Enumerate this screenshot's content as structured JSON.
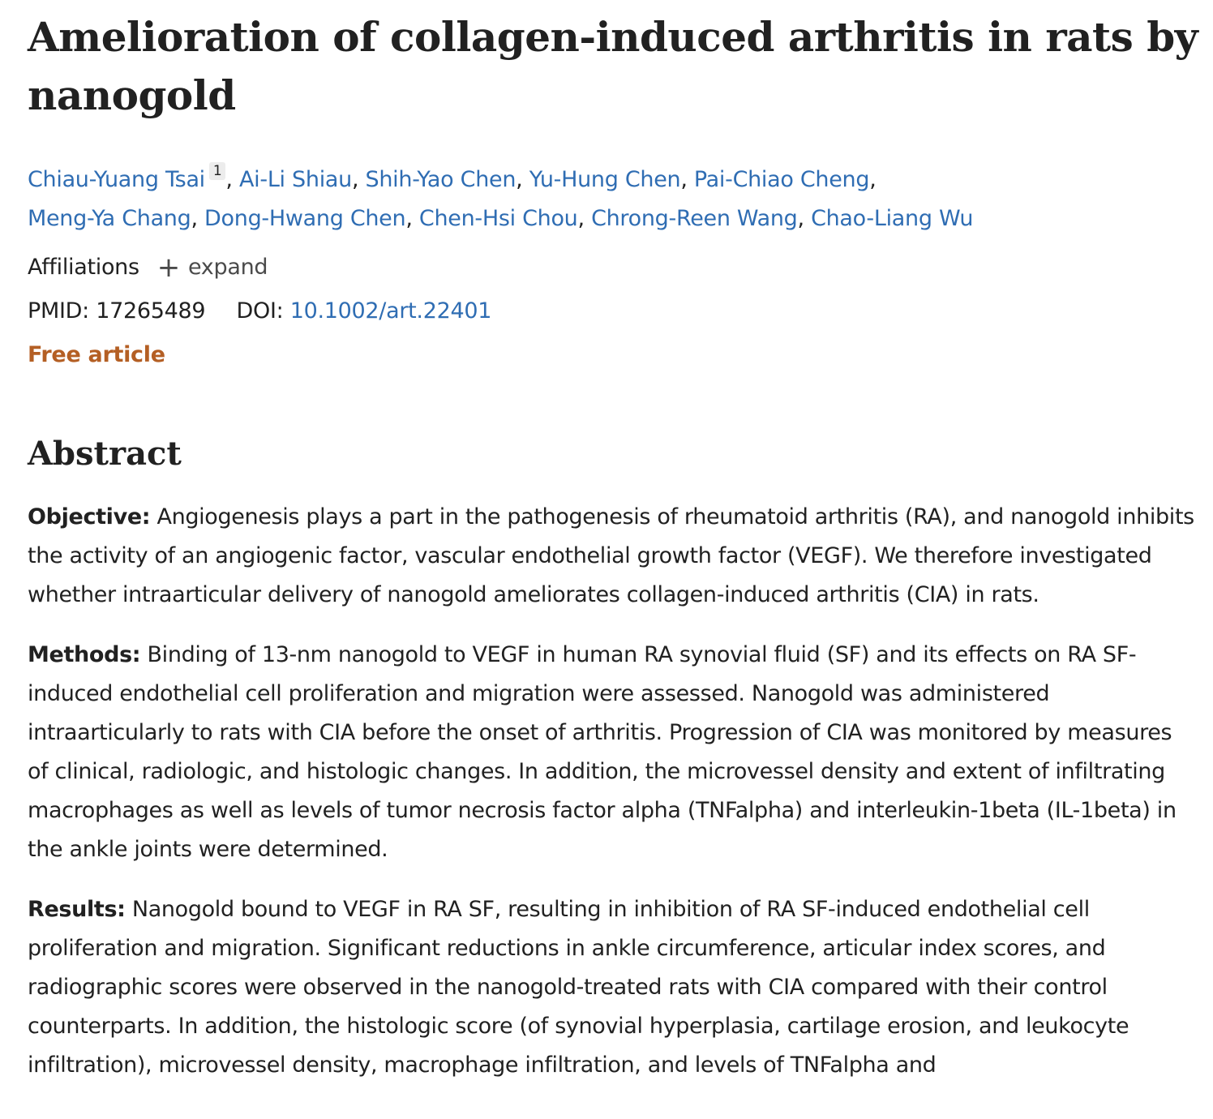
{
  "article": {
    "title": "Amelioration of collagen-induced arthritis in rats by nanogold",
    "authors": [
      {
        "name": "Chiau-Yuang Tsai",
        "aff": "1"
      },
      {
        "name": "Ai-Li Shiau"
      },
      {
        "name": "Shih-Yao Chen"
      },
      {
        "name": "Yu-Hung Chen"
      },
      {
        "name": "Pai-Chiao Cheng"
      },
      {
        "name": "Meng-Ya Chang"
      },
      {
        "name": "Dong-Hwang Chen"
      },
      {
        "name": "Chen-Hsi Chou"
      },
      {
        "name": "Chrong-Reen Wang"
      },
      {
        "name": "Chao-Liang Wu"
      }
    ],
    "affiliations_label": "Affiliations",
    "expand_label": "expand",
    "pmid_label": "PMID: 17265489",
    "doi_label": "DOI:",
    "doi_value": "10.1002/art.22401",
    "free_label": "Free article"
  },
  "abstract": {
    "heading": "Abstract",
    "sections": [
      {
        "label": "Objective:",
        "text": "Angiogenesis plays a part in the pathogenesis of rheumatoid arthritis (RA), and nanogold inhibits the activity of an angiogenic factor, vascular endothelial growth factor (VEGF). We therefore investigated whether intraarticular delivery of nanogold ameliorates collagen-induced arthritis (CIA) in rats."
      },
      {
        "label": "Methods:",
        "text": "Binding of 13-nm nanogold to VEGF in human RA synovial fluid (SF) and its effects on RA SF-induced endothelial cell proliferation and migration were assessed. Nanogold was administered intraarticularly to rats with CIA before the onset of arthritis. Progression of CIA was monitored by measures of clinical, radiologic, and histologic changes. In addition, the microvessel density and extent of infiltrating macrophages as well as levels of tumor necrosis factor alpha (TNFalpha) and interleukin-1beta (IL-1beta) in the ankle joints were determined."
      },
      {
        "label": "Results:",
        "text": "Nanogold bound to VEGF in RA SF, resulting in inhibition of RA SF-induced endothelial cell proliferation and migration. Significant reductions in ankle circumference, articular index scores, and radiographic scores were observed in the nanogold-treated rats with CIA compared with their control counterparts. In addition, the histologic score (of synovial hyperplasia, cartilage erosion, and leukocyte infiltration), microvessel density, macrophage infiltration, and levels of TNFalpha and"
      }
    ]
  },
  "colors": {
    "link": "#2f6db3",
    "free_article": "#b45f24",
    "text": "#212121"
  }
}
